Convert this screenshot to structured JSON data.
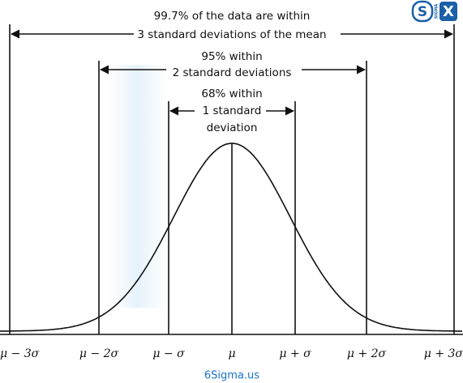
{
  "logo": {
    "left": "S",
    "middle": "SIGMA",
    "right": "X"
  },
  "annotations": {
    "three_sigma": [
      "99.7% of the data are within",
      "3 standard deviations of the mean"
    ],
    "two_sigma": [
      "95% within",
      "2 standard deviations"
    ],
    "one_sigma": [
      "68% within",
      "1 standard",
      "deviation"
    ]
  },
  "axis_labels": [
    "μ − 3σ",
    "μ − 2σ",
    "μ − σ",
    "μ",
    "μ + σ",
    "μ + 2σ",
    "μ + 3σ"
  ],
  "footer": "6Sigma.us"
}
